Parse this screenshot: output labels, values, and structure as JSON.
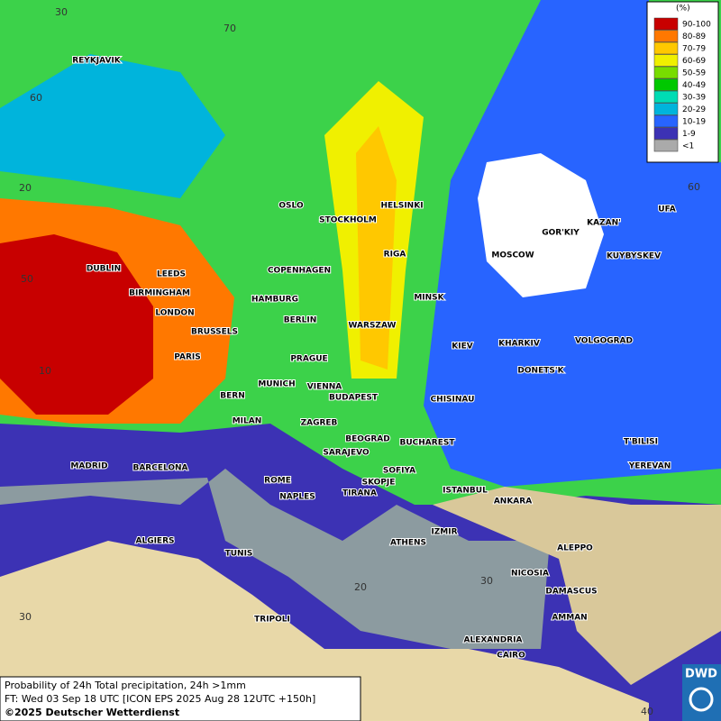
{
  "legend": {
    "unit": "(%)",
    "items": [
      {
        "label": "90-100",
        "color": "#c80000"
      },
      {
        "label": "80-89",
        "color": "#ff7800"
      },
      {
        "label": "70-79",
        "color": "#ffc800"
      },
      {
        "label": "60-69",
        "color": "#f0f000"
      },
      {
        "label": "50-59",
        "color": "#78dc00"
      },
      {
        "label": "40-49",
        "color": "#00c800"
      },
      {
        "label": "30-39",
        "color": "#00dcb4"
      },
      {
        "label": "20-29",
        "color": "#00b4dc"
      },
      {
        "label": "10-19",
        "color": "#2864ff"
      },
      {
        "label": "1-9",
        "color": "#3c32b4"
      },
      {
        "label": "<1",
        "color": "#aaaaaa"
      }
    ]
  },
  "cities": [
    "REYKJAVIK",
    "OSLO",
    "STOCKHOLM",
    "HELSINKI",
    "GOR'KIY",
    "KAZAN'",
    "UFA",
    "MOSCOW",
    "KUYBYSKEV",
    "RIGA",
    "DUBLIN",
    "LEEDS",
    "COPENHAGEN",
    "BIRMINGHAM",
    "HAMBURG",
    "MINSK",
    "LONDON",
    "BERLIN",
    "WARSZAW",
    "BRUSSELS",
    "KIEV",
    "KHARKIV",
    "VOLGOGRAD",
    "PARIS",
    "PRAGUE",
    "DONETS'K",
    "MUNICH",
    "VIENNA",
    "BERN",
    "BUDAPEST",
    "CHISINAU",
    "MILAN",
    "ZAGREB",
    "BEOGRAD",
    "BUCHAREST",
    "T'BILISI",
    "MADRID",
    "BARCELONA",
    "SARAJEVO",
    "SOFIYA",
    "YEREVAN",
    "ROME",
    "SKOPJE",
    "NAPLES",
    "TIRANA",
    "ISTANBUL",
    "ANKARA",
    "IZMIR",
    "ALGIERS",
    "ATHENS",
    "ALEPPO",
    "TUNIS",
    "NICOSIA",
    "DAMASCUS",
    "TRIPOLI",
    "AMMAN",
    "ALEXANDRIA",
    "CAIRO"
  ],
  "grid_labels": [
    "30",
    "70",
    "60",
    "20",
    "50",
    "10",
    "60",
    "20",
    "30",
    "30",
    "40"
  ],
  "footer": {
    "line1": "Probability of 24h Total precipitation, 24h >1mm",
    "line2": "FT: Wed 03 Sep 18 UTC [ICON EPS 2025 Aug 28 12UTC +150h]",
    "line3": "©2025 Deutscher Wetterdienst"
  },
  "logo": "DWD"
}
